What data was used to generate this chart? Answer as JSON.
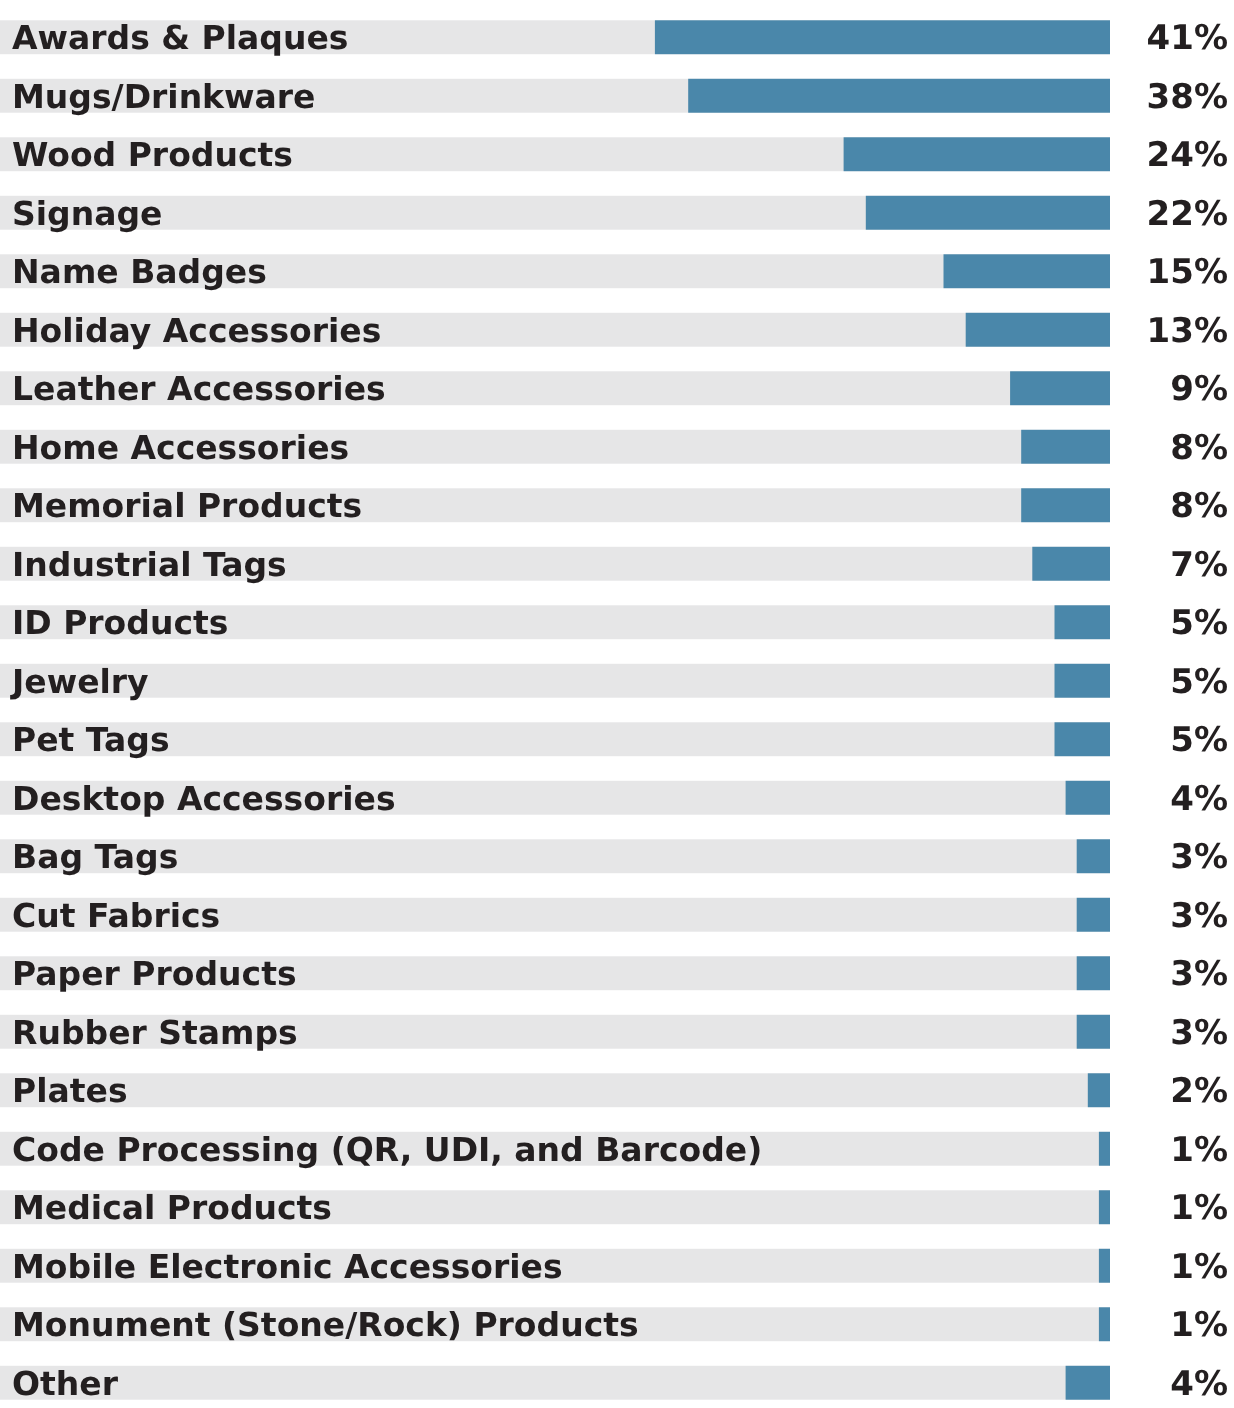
{
  "chart_data": {
    "type": "bar",
    "orientation": "horizontal",
    "categories": [
      "Awards & Plaques",
      "Mugs/Drinkware",
      "Wood Products",
      "Signage",
      "Name Badges",
      "Holiday Accessories",
      "Leather Accessories",
      "Home Accessories",
      "Memorial Products",
      "Industrial Tags",
      "ID Products",
      "Jewelry",
      "Pet Tags",
      "Desktop Accessories",
      "Bag Tags",
      "Cut Fabrics",
      "Paper Products",
      "Rubber Stamps",
      "Plates",
      "Code Processing (QR, UDI, and Barcode)",
      "Medical Products",
      "Mobile Electronic Accessories",
      "Monument (Stone/Rock) Products",
      "Other"
    ],
    "values": [
      41,
      38,
      24,
      22,
      15,
      13,
      9,
      8,
      8,
      7,
      5,
      5,
      5,
      4,
      3,
      3,
      3,
      3,
      2,
      1,
      1,
      1,
      1,
      4
    ],
    "value_labels": [
      "41%",
      "38%",
      "24%",
      "22%",
      "15%",
      "13%",
      "9%",
      "8%",
      "8%",
      "7%",
      "5%",
      "5%",
      "5%",
      "4%",
      "3%",
      "3%",
      "3%",
      "3%",
      "2%",
      "1%",
      "1%",
      "1%",
      "1%",
      "4%"
    ],
    "color": "#4a87aa",
    "xlim": [
      100,
      0
    ]
  }
}
